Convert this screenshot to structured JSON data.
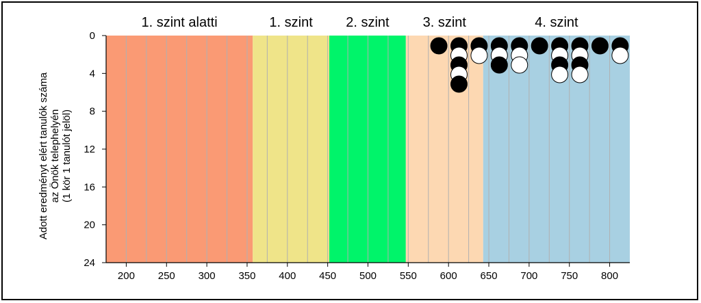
{
  "chart_data": {
    "type": "scatter",
    "xlim": [
      175,
      825
    ],
    "ylim": [
      0,
      24
    ],
    "x_ticks": [
      "200",
      "250",
      "300",
      "350",
      "400",
      "450",
      "500",
      "550",
      "600",
      "650",
      "700",
      "750",
      "800"
    ],
    "y_ticks": [
      "0",
      "4",
      "8",
      "12",
      "16",
      "20",
      "24"
    ],
    "y_inverted": true,
    "ylabel_lines": [
      "Adott eredményt elért tanulók száma",
      "az Önök telephelyén",
      "(1 kör 1 tanulót jelöl)"
    ],
    "levels": [
      {
        "label": "1. szint alatti",
        "from": 175,
        "to": 357,
        "color": "#FA9A74"
      },
      {
        "label": "1. szint",
        "from": 357,
        "to": 452,
        "color": "#EFE489"
      },
      {
        "label": "2. szint",
        "from": 452,
        "to": 547,
        "color": "#00F46A"
      },
      {
        "label": "3. szint",
        "from": 547,
        "to": 643,
        "color": "#FDD8B2"
      },
      {
        "label": "4. szint",
        "from": 643,
        "to": 825,
        "color": "#A8D0E2"
      }
    ],
    "grid_x": [
      200,
      225,
      250,
      275,
      300,
      325,
      350,
      375,
      400,
      425,
      450,
      475,
      500,
      525,
      550,
      575,
      600,
      625,
      650,
      675,
      700,
      725,
      750,
      775,
      800
    ],
    "columns": [
      {
        "x": 588,
        "dots": [
          "black"
        ]
      },
      {
        "x": 613,
        "dots": [
          "black",
          "white",
          "black",
          "white",
          "black"
        ]
      },
      {
        "x": 638,
        "dots": [
          "black",
          "white"
        ]
      },
      {
        "x": 663,
        "dots": [
          "black",
          "white",
          "black"
        ]
      },
      {
        "x": 688,
        "dots": [
          "black",
          "white",
          "white"
        ]
      },
      {
        "x": 713,
        "dots": [
          "black"
        ]
      },
      {
        "x": 738,
        "dots": [
          "black",
          "white",
          "black",
          "white"
        ]
      },
      {
        "x": 763,
        "dots": [
          "black",
          "white",
          "black",
          "white"
        ]
      },
      {
        "x": 788,
        "dots": [
          "black"
        ]
      },
      {
        "x": 813,
        "dots": [
          "black",
          "white"
        ]
      }
    ]
  }
}
